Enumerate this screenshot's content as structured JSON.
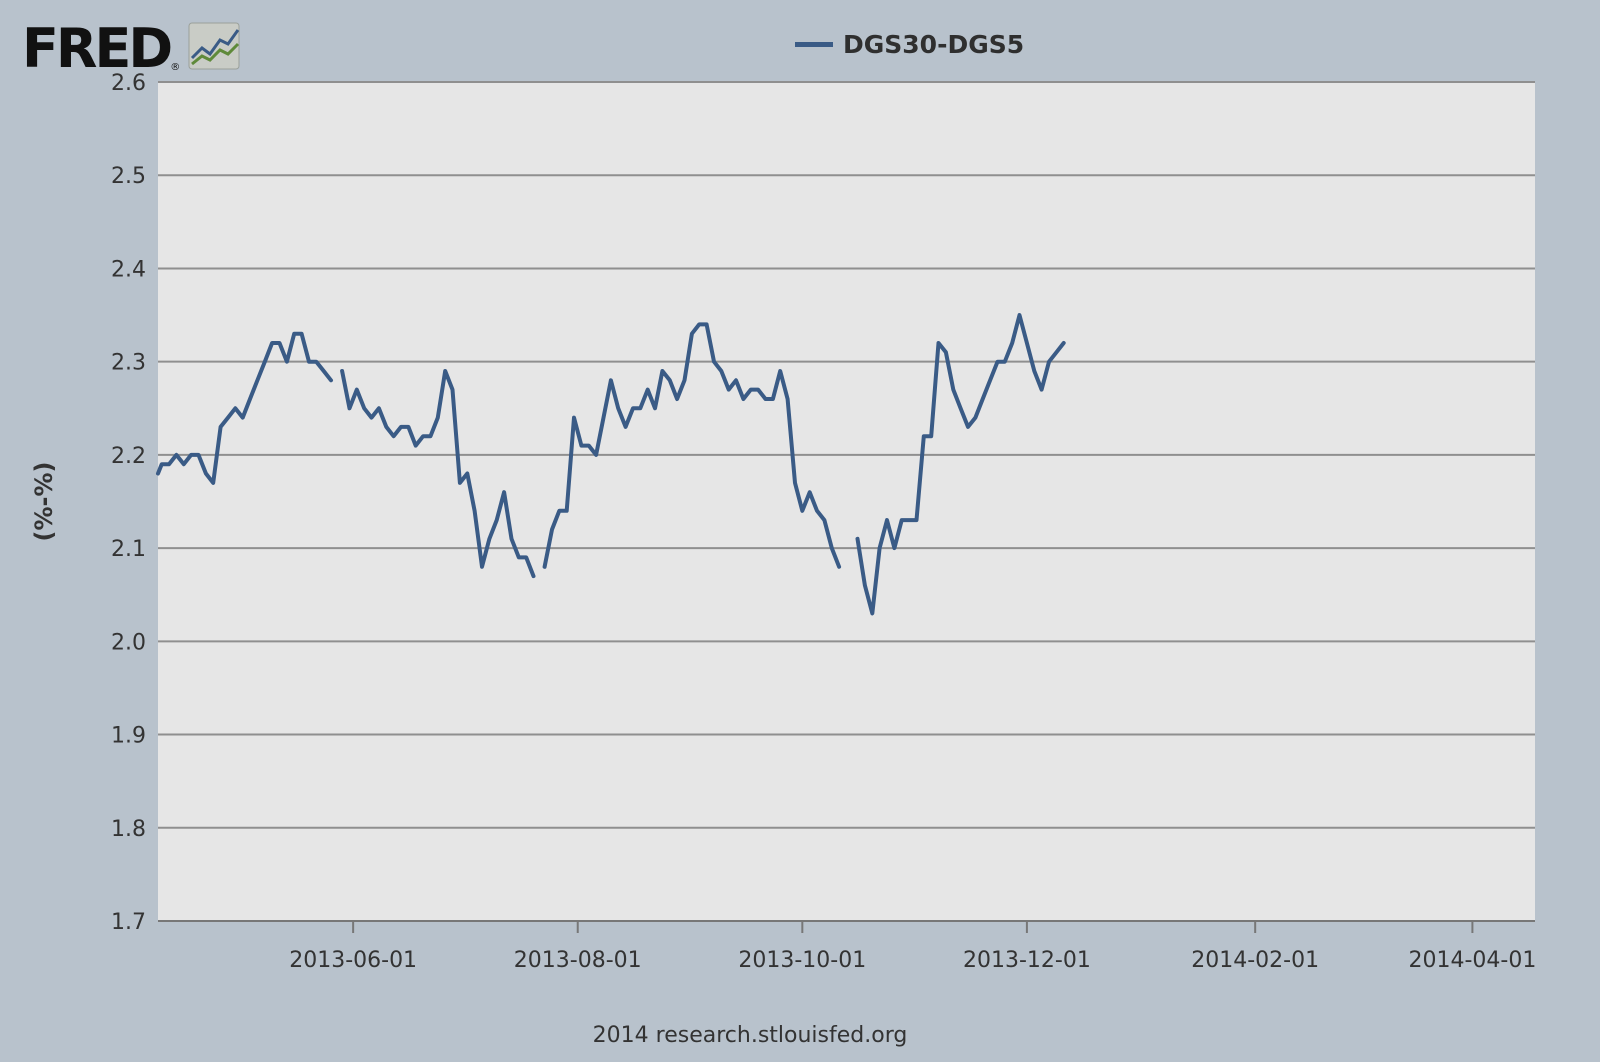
{
  "logo": {
    "text": "FRED",
    "reg": "®"
  },
  "footer": "2014 research.stlouisfed.org",
  "colors": {
    "line": "#3a5b86",
    "plot_bg": "#e6e6e6",
    "page_bg": "#b8c2cc",
    "grid": "#8f8f8f"
  },
  "chart_data": {
    "type": "line",
    "title": "",
    "ylabel": "(%-%)",
    "xlabel": "",
    "ylim": [
      1.7,
      2.6
    ],
    "yticks": [
      1.7,
      1.8,
      1.9,
      2.0,
      2.1,
      2.2,
      2.3,
      2.4,
      2.5,
      2.6
    ],
    "ytick_labels": [
      "1.7",
      "1.8",
      "1.9",
      "2.0",
      "2.1",
      "2.2",
      "2.3",
      "2.4",
      "2.5",
      "2.6"
    ],
    "xlim": [
      "2013-04-09",
      "2014-04-18"
    ],
    "xticks": [
      "2013-06-01",
      "2013-08-01",
      "2013-10-01",
      "2013-12-01",
      "2014-02-01",
      "2014-04-01"
    ],
    "legend": "top-center",
    "grid": "horizontal",
    "series": [
      {
        "name": "DGS30-DGS5",
        "segments": [
          [
            [
              "2013-04-09",
              2.18
            ],
            [
              "2013-04-10",
              2.19
            ],
            [
              "2013-04-12",
              2.19
            ],
            [
              "2013-04-14",
              2.2
            ],
            [
              "2013-04-16",
              2.19
            ],
            [
              "2013-04-18",
              2.2
            ],
            [
              "2013-04-20",
              2.2
            ],
            [
              "2013-04-22",
              2.18
            ],
            [
              "2013-04-24",
              2.17
            ],
            [
              "2013-04-26",
              2.23
            ],
            [
              "2013-04-28",
              2.24
            ],
            [
              "2013-04-30",
              2.25
            ],
            [
              "2013-05-02",
              2.24
            ],
            [
              "2013-05-04",
              2.26
            ],
            [
              "2013-05-06",
              2.28
            ],
            [
              "2013-05-08",
              2.3
            ],
            [
              "2013-05-10",
              2.32
            ],
            [
              "2013-05-12",
              2.32
            ],
            [
              "2013-05-14",
              2.3
            ],
            [
              "2013-05-16",
              2.33
            ],
            [
              "2013-05-18",
              2.33
            ],
            [
              "2013-05-20",
              2.3
            ],
            [
              "2013-05-22",
              2.3
            ],
            [
              "2013-05-24",
              2.29
            ],
            [
              "2013-05-26",
              2.28
            ]
          ],
          [
            [
              "2013-05-29",
              2.29
            ],
            [
              "2013-05-31",
              2.25
            ],
            [
              "2013-06-02",
              2.27
            ],
            [
              "2013-06-04",
              2.25
            ],
            [
              "2013-06-06",
              2.24
            ],
            [
              "2013-06-08",
              2.25
            ],
            [
              "2013-06-10",
              2.23
            ],
            [
              "2013-06-12",
              2.22
            ],
            [
              "2013-06-14",
              2.23
            ],
            [
              "2013-06-16",
              2.23
            ],
            [
              "2013-06-18",
              2.21
            ],
            [
              "2013-06-20",
              2.22
            ],
            [
              "2013-06-22",
              2.22
            ],
            [
              "2013-06-24",
              2.24
            ],
            [
              "2013-06-26",
              2.29
            ],
            [
              "2013-06-28",
              2.27
            ],
            [
              "2013-06-30",
              2.17
            ],
            [
              "2013-07-02",
              2.18
            ],
            [
              "2013-07-04",
              2.14
            ],
            [
              "2013-07-06",
              2.08
            ],
            [
              "2013-07-08",
              2.11
            ],
            [
              "2013-07-10",
              2.13
            ],
            [
              "2013-07-12",
              2.16
            ],
            [
              "2013-07-14",
              2.11
            ],
            [
              "2013-07-16",
              2.09
            ],
            [
              "2013-07-18",
              2.09
            ],
            [
              "2013-07-20",
              2.07
            ]
          ],
          [
            [
              "2013-07-23",
              2.08
            ],
            [
              "2013-07-25",
              2.12
            ],
            [
              "2013-07-27",
              2.14
            ],
            [
              "2013-07-29",
              2.14
            ],
            [
              "2013-07-31",
              2.24
            ],
            [
              "2013-08-02",
              2.21
            ],
            [
              "2013-08-04",
              2.21
            ],
            [
              "2013-08-06",
              2.2
            ],
            [
              "2013-08-08",
              2.24
            ],
            [
              "2013-08-10",
              2.28
            ],
            [
              "2013-08-12",
              2.25
            ],
            [
              "2013-08-14",
              2.23
            ],
            [
              "2013-08-16",
              2.25
            ],
            [
              "2013-08-18",
              2.25
            ],
            [
              "2013-08-20",
              2.27
            ],
            [
              "2013-08-22",
              2.25
            ],
            [
              "2013-08-24",
              2.29
            ],
            [
              "2013-08-26",
              2.28
            ],
            [
              "2013-08-28",
              2.26
            ],
            [
              "2013-08-30",
              2.28
            ],
            [
              "2013-09-01",
              2.33
            ],
            [
              "2013-09-03",
              2.34
            ],
            [
              "2013-09-05",
              2.34
            ],
            [
              "2013-09-07",
              2.3
            ],
            [
              "2013-09-09",
              2.29
            ],
            [
              "2013-09-11",
              2.27
            ],
            [
              "2013-09-13",
              2.28
            ],
            [
              "2013-09-15",
              2.26
            ],
            [
              "2013-09-17",
              2.27
            ],
            [
              "2013-09-19",
              2.27
            ],
            [
              "2013-09-21",
              2.26
            ],
            [
              "2013-09-23",
              2.26
            ],
            [
              "2013-09-25",
              2.29
            ],
            [
              "2013-09-27",
              2.26
            ],
            [
              "2013-09-29",
              2.17
            ],
            [
              "2013-10-01",
              2.14
            ],
            [
              "2013-10-03",
              2.16
            ],
            [
              "2013-10-05",
              2.14
            ],
            [
              "2013-10-07",
              2.13
            ],
            [
              "2013-10-09",
              2.1
            ],
            [
              "2013-10-11",
              2.08
            ]
          ],
          [
            [
              "2013-10-16",
              2.11
            ],
            [
              "2013-10-18",
              2.06
            ],
            [
              "2013-10-20",
              2.03
            ],
            [
              "2013-10-22",
              2.1
            ],
            [
              "2013-10-24",
              2.13
            ],
            [
              "2013-10-26",
              2.1
            ],
            [
              "2013-10-28",
              2.13
            ],
            [
              "2013-10-30",
              2.13
            ],
            [
              "2013-11-01",
              2.13
            ],
            [
              "2013-11-03",
              2.22
            ],
            [
              "2013-11-05",
              2.22
            ],
            [
              "2013-11-07",
              2.32
            ],
            [
              "2013-11-09",
              2.31
            ],
            [
              "2013-11-11",
              2.27
            ],
            [
              "2013-11-13",
              2.25
            ],
            [
              "2013-11-15",
              2.23
            ],
            [
              "2013-11-17",
              2.24
            ],
            [
              "2013-11-19",
              2.26
            ],
            [
              "2013-11-21",
              2.28
            ],
            [
              "2013-11-23",
              2.3
            ],
            [
              "2013-11-25",
              2.3
            ],
            [
              "2013-11-27",
              2.32
            ],
            [
              "2013-11-29",
              2.35
            ],
            [
              "2013-12-01",
              2.32
            ],
            [
              "2013-12-03",
              2.29
            ],
            [
              "2013-12-05",
              2.27
            ],
            [
              "2013-12-07",
              2.3
            ],
            [
              "2013-12-09",
              2.31
            ],
            [
              "2013-12-11",
              2.32
            ]
          ]
        ]
      }
    ]
  }
}
